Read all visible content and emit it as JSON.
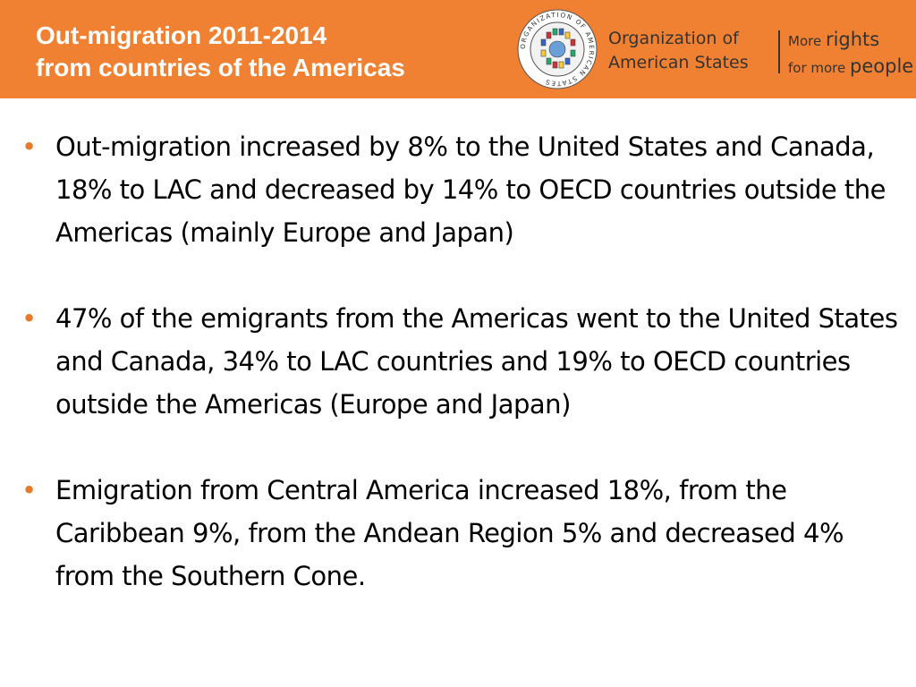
{
  "header": {
    "title_line1": "Out-migration 2011-2014",
    "title_line2": "from countries of the Americas",
    "org_line1": "Organization of",
    "org_line2": "American States",
    "slogan_more1": "More ",
    "slogan_rights": "rights",
    "slogan_formore": "for more ",
    "slogan_people": "people",
    "seal_text": "ORGANIZATION OF AMERICAN STATES"
  },
  "bullets": [
    {
      "text": "Out-migration increased by 8% to the United States and Canada, 18% to LAC and decreased by 14% to OECD countries outside the Americas (mainly Europe and Japan)"
    },
    {
      "text": "47% of the emigrants from the Americas went to the United States and Canada, 34% to LAC countries and 19% to OECD countries outside the Americas (Europe and Japan)"
    },
    {
      "text": "Emigration from Central America increased 18%, from the Caribbean 9%, from the Andean Region 5% and decreased 4% from the Southern Cone."
    }
  ],
  "colors": {
    "header_bg": "#f08132",
    "bullet_color": "#e8792a"
  }
}
